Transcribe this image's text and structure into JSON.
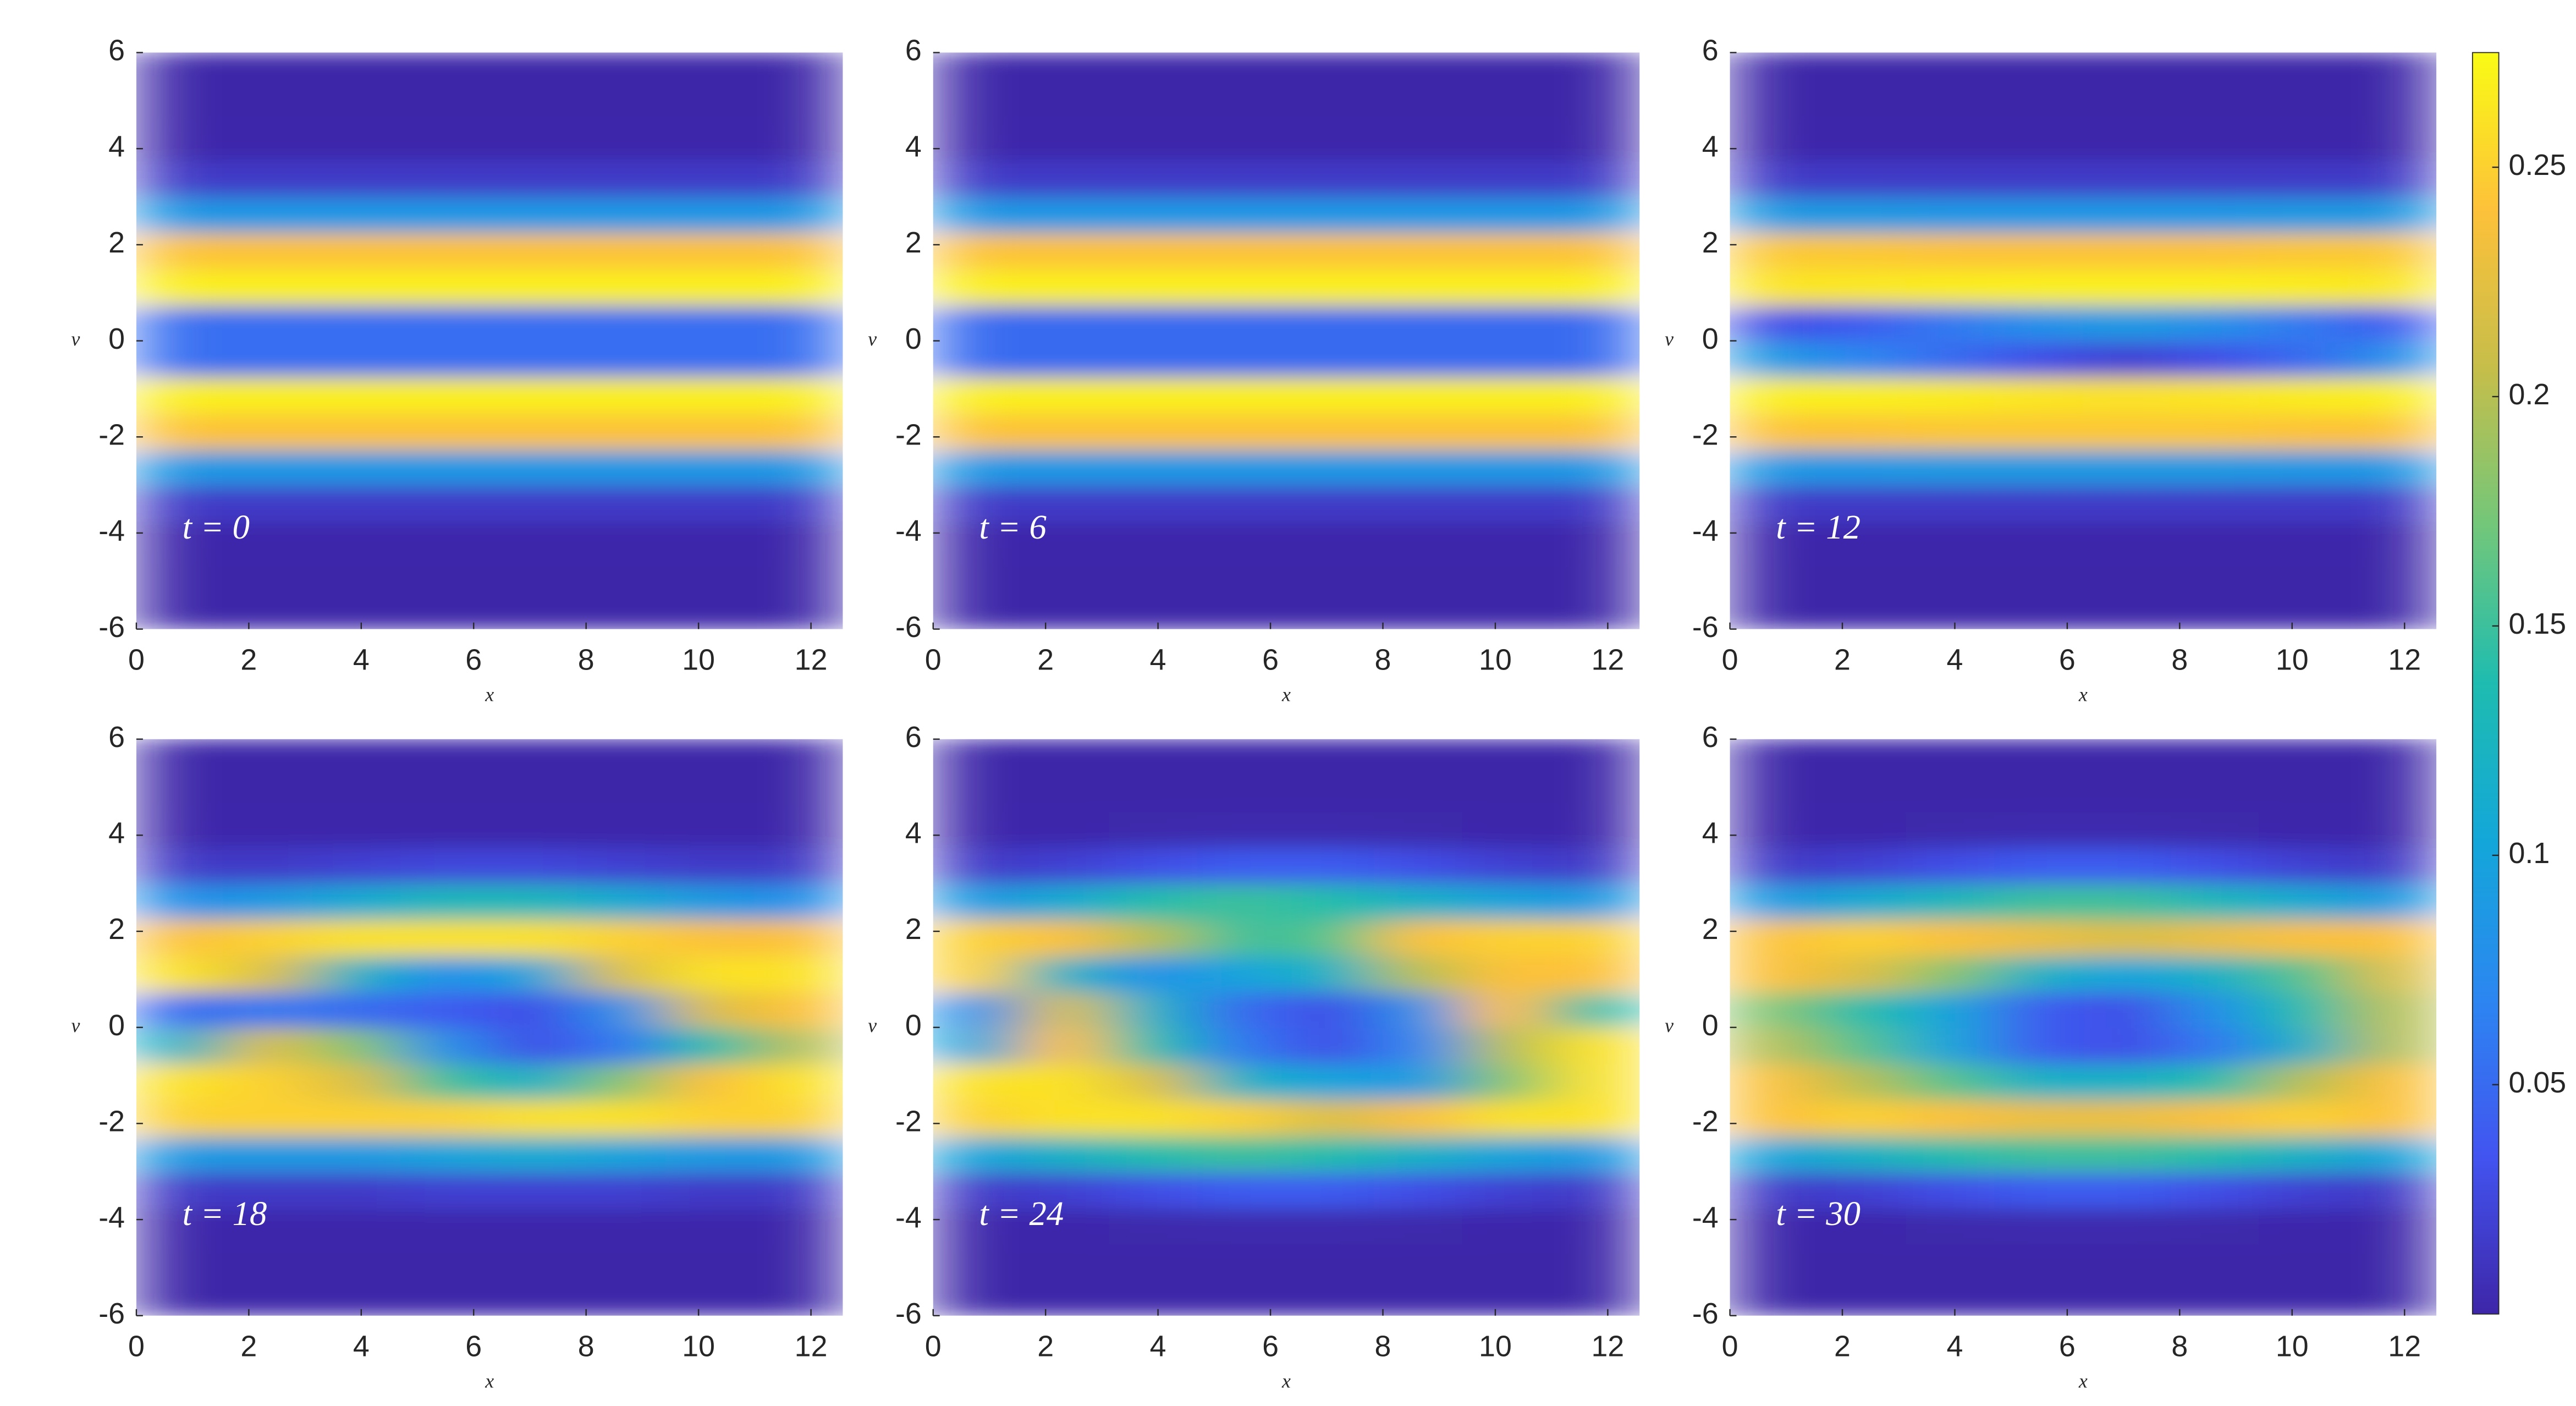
{
  "chart_data": [
    {
      "type": "heatmap",
      "label": "t = 0",
      "xlabel": "x",
      "ylabel": "v",
      "xlim": [
        0,
        12.566
      ],
      "ylim": [
        -6,
        6
      ],
      "xticks": [
        0,
        2,
        4,
        6,
        8,
        10,
        12
      ],
      "yticks": [
        -6,
        -4,
        -2,
        0,
        2,
        4,
        6
      ],
      "z": [
        [
          0
        ],
        [
          0
        ],
        [
          0.001
        ],
        [
          0.015
        ],
        [
          0.088
        ],
        [
          0.242
        ],
        [
          0.268
        ],
        [
          0.052
        ],
        [
          0.052
        ],
        [
          0.268
        ],
        [
          0.242
        ],
        [
          0.088
        ],
        [
          0.015
        ],
        [
          0.001
        ],
        [
          0
        ],
        [
          0
        ]
      ]
    },
    {
      "type": "heatmap",
      "label": "t = 6",
      "xlabel": "x",
      "ylabel": "v",
      "xlim": [
        0,
        12.566
      ],
      "ylim": [
        -6,
        6
      ],
      "xticks": [
        0,
        2,
        4,
        6,
        8,
        10,
        12
      ],
      "yticks": [
        -6,
        -4,
        -2,
        0,
        2,
        4,
        6
      ],
      "z": [
        [
          0
        ],
        [
          0
        ],
        [
          0.001
        ],
        [
          0.015
        ],
        [
          0.088
        ],
        [
          0.242
        ],
        [
          0.268
        ],
        [
          0.05
        ],
        [
          0.05
        ],
        [
          0.268
        ],
        [
          0.242
        ],
        [
          0.088
        ],
        [
          0.015
        ],
        [
          0.001
        ],
        [
          0
        ],
        [
          0
        ]
      ]
    },
    {
      "type": "heatmap",
      "label": "t = 12",
      "xlabel": "x",
      "ylabel": "v",
      "xlim": [
        0,
        12.566
      ],
      "ylim": [
        -6,
        6
      ],
      "xticks": [
        0,
        2,
        4,
        6,
        8,
        10,
        12
      ],
      "yticks": [
        -6,
        -4,
        -2,
        0,
        2,
        4,
        6
      ],
      "z": [
        [
          0,
          0,
          0,
          0,
          0,
          0,
          0,
          0
        ],
        [
          0,
          0,
          0,
          0,
          0,
          0,
          0,
          0
        ],
        [
          0.001,
          0.001,
          0.001,
          0.001,
          0.001,
          0.001,
          0.001,
          0.001
        ],
        [
          0.015,
          0.015,
          0.015,
          0.015,
          0.015,
          0.015,
          0.015,
          0.015
        ],
        [
          0.088,
          0.088,
          0.09,
          0.09,
          0.09,
          0.09,
          0.088,
          0.088
        ],
        [
          0.242,
          0.242,
          0.245,
          0.245,
          0.245,
          0.245,
          0.242,
          0.242
        ],
        [
          0.268,
          0.268,
          0.266,
          0.262,
          0.26,
          0.262,
          0.266,
          0.268
        ],
        [
          0.09,
          0.07,
          0.05,
          0.03,
          0.02,
          0.03,
          0.05,
          0.08
        ],
        [
          0.03,
          0.04,
          0.06,
          0.08,
          0.09,
          0.08,
          0.06,
          0.04
        ],
        [
          0.262,
          0.264,
          0.266,
          0.268,
          0.268,
          0.268,
          0.266,
          0.264
        ],
        [
          0.245,
          0.245,
          0.242,
          0.242,
          0.242,
          0.242,
          0.245,
          0.245
        ],
        [
          0.09,
          0.09,
          0.088,
          0.088,
          0.088,
          0.088,
          0.09,
          0.09
        ],
        [
          0.015,
          0.015,
          0.015,
          0.015,
          0.015,
          0.015,
          0.015,
          0.015
        ],
        [
          0.001,
          0.001,
          0.001,
          0.001,
          0.001,
          0.001,
          0.001,
          0.001
        ],
        [
          0,
          0,
          0,
          0,
          0,
          0,
          0,
          0
        ],
        [
          0,
          0,
          0,
          0,
          0,
          0,
          0,
          0
        ]
      ]
    },
    {
      "type": "heatmap",
      "label": "t = 18",
      "xlabel": "x",
      "ylabel": "v",
      "xlim": [
        0,
        12.566
      ],
      "ylim": [
        -6,
        6
      ],
      "xticks": [
        0,
        2,
        4,
        6,
        8,
        10,
        12
      ],
      "yticks": [
        -6,
        -4,
        -2,
        0,
        2,
        4,
        6
      ],
      "z": [
        [
          0,
          0,
          0,
          0,
          0,
          0,
          0,
          0
        ],
        [
          0,
          0,
          0,
          0,
          0,
          0,
          0,
          0
        ],
        [
          0.001,
          0.001,
          0.001,
          0.001,
          0.001,
          0.001,
          0.001,
          0.001
        ],
        [
          0.015,
          0.015,
          0.015,
          0.02,
          0.02,
          0.02,
          0.015,
          0.015
        ],
        [
          0.09,
          0.09,
          0.09,
          0.1,
          0.11,
          0.1,
          0.09,
          0.09
        ],
        [
          0.25,
          0.25,
          0.25,
          0.25,
          0.26,
          0.26,
          0.25,
          0.25
        ],
        [
          0.26,
          0.25,
          0.22,
          0.15,
          0.12,
          0.18,
          0.24,
          0.26
        ],
        [
          0.12,
          0.22,
          0.18,
          0.08,
          0.03,
          0.06,
          0.14,
          0.2
        ],
        [
          0.05,
          0.06,
          0.05,
          0.04,
          0.03,
          0.08,
          0.22,
          0.24
        ],
        [
          0.26,
          0.22,
          0.12,
          0.08,
          0.1,
          0.22,
          0.26,
          0.26
        ],
        [
          0.24,
          0.25,
          0.26,
          0.26,
          0.26,
          0.25,
          0.24,
          0.24
        ],
        [
          0.08,
          0.09,
          0.11,
          0.13,
          0.13,
          0.11,
          0.09,
          0.08
        ],
        [
          0.015,
          0.015,
          0.02,
          0.025,
          0.025,
          0.02,
          0.015,
          0.015
        ],
        [
          0.001,
          0.001,
          0.001,
          0.001,
          0.001,
          0.001,
          0.001,
          0.001
        ],
        [
          0,
          0,
          0,
          0,
          0,
          0,
          0,
          0
        ],
        [
          0,
          0,
          0,
          0,
          0,
          0,
          0,
          0
        ]
      ]
    },
    {
      "type": "heatmap",
      "label": "t = 24",
      "xlabel": "x",
      "ylabel": "v",
      "xlim": [
        0,
        12.566
      ],
      "ylim": [
        -6,
        6
      ],
      "xticks": [
        0,
        2,
        4,
        6,
        8,
        10,
        12
      ],
      "yticks": [
        -6,
        -4,
        -2,
        0,
        2,
        4,
        6
      ],
      "z": [
        [
          0,
          0,
          0,
          0,
          0,
          0,
          0,
          0
        ],
        [
          0,
          0,
          0,
          0,
          0,
          0,
          0,
          0
        ],
        [
          0.001,
          0.001,
          0.002,
          0.003,
          0.003,
          0.002,
          0.001,
          0.001
        ],
        [
          0.015,
          0.02,
          0.03,
          0.04,
          0.04,
          0.03,
          0.02,
          0.015
        ],
        [
          0.1,
          0.12,
          0.14,
          0.15,
          0.14,
          0.12,
          0.1,
          0.09
        ],
        [
          0.25,
          0.26,
          0.26,
          0.25,
          0.22,
          0.24,
          0.26,
          0.26
        ],
        [
          0.26,
          0.26,
          0.22,
          0.12,
          0.1,
          0.09,
          0.18,
          0.26
        ],
        [
          0.1,
          0.24,
          0.14,
          0.06,
          0.03,
          0.07,
          0.2,
          0.26
        ],
        [
          0.08,
          0.22,
          0.12,
          0.05,
          0.03,
          0.08,
          0.24,
          0.14
        ],
        [
          0.25,
          0.12,
          0.08,
          0.1,
          0.12,
          0.2,
          0.24,
          0.24
        ],
        [
          0.25,
          0.24,
          0.2,
          0.15,
          0.16,
          0.24,
          0.25,
          0.25
        ],
        [
          0.09,
          0.11,
          0.14,
          0.15,
          0.14,
          0.12,
          0.1,
          0.09
        ],
        [
          0.015,
          0.02,
          0.03,
          0.04,
          0.04,
          0.03,
          0.02,
          0.015
        ],
        [
          0.001,
          0.001,
          0.002,
          0.003,
          0.003,
          0.002,
          0.001,
          0.001
        ],
        [
          0,
          0,
          0,
          0,
          0,
          0,
          0,
          0
        ],
        [
          0,
          0,
          0,
          0,
          0,
          0,
          0,
          0
        ]
      ]
    },
    {
      "type": "heatmap",
      "label": "t = 30",
      "xlabel": "x",
      "ylabel": "v",
      "xlim": [
        0,
        12.566
      ],
      "ylim": [
        -6,
        6
      ],
      "xticks": [
        0,
        2,
        4,
        6,
        8,
        10,
        12
      ],
      "yticks": [
        -6,
        -4,
        -2,
        0,
        2,
        4,
        6
      ],
      "z": [
        [
          0,
          0,
          0,
          0,
          0,
          0,
          0,
          0
        ],
        [
          0,
          0,
          0,
          0,
          0,
          0,
          0,
          0
        ],
        [
          0.001,
          0.001,
          0.002,
          0.003,
          0.003,
          0.002,
          0.001,
          0.001
        ],
        [
          0.015,
          0.02,
          0.03,
          0.04,
          0.04,
          0.03,
          0.02,
          0.015
        ],
        [
          0.1,
          0.12,
          0.14,
          0.15,
          0.15,
          0.14,
          0.12,
          0.1
        ],
        [
          0.24,
          0.25,
          0.24,
          0.23,
          0.23,
          0.24,
          0.25,
          0.24
        ],
        [
          0.24,
          0.2,
          0.16,
          0.12,
          0.12,
          0.14,
          0.2,
          0.24
        ],
        [
          0.2,
          0.16,
          0.1,
          0.04,
          0.03,
          0.06,
          0.12,
          0.2
        ],
        [
          0.18,
          0.14,
          0.1,
          0.04,
          0.03,
          0.08,
          0.14,
          0.2
        ],
        [
          0.24,
          0.22,
          0.18,
          0.12,
          0.1,
          0.12,
          0.16,
          0.22
        ],
        [
          0.24,
          0.25,
          0.24,
          0.23,
          0.22,
          0.23,
          0.24,
          0.24
        ],
        [
          0.09,
          0.11,
          0.13,
          0.15,
          0.15,
          0.13,
          0.11,
          0.09
        ],
        [
          0.015,
          0.02,
          0.03,
          0.04,
          0.04,
          0.03,
          0.02,
          0.015
        ],
        [
          0.001,
          0.001,
          0.002,
          0.003,
          0.003,
          0.002,
          0.001,
          0.001
        ],
        [
          0,
          0,
          0,
          0,
          0,
          0,
          0,
          0
        ],
        [
          0,
          0,
          0,
          0,
          0,
          0,
          0,
          0
        ]
      ]
    },
    {
      "type": "colorbar",
      "clim": [
        0,
        0.275
      ],
      "ticks": [
        0.05,
        0.1,
        0.15,
        0.2,
        0.25
      ],
      "colormap": [
        "#3e26a8",
        "#4254f0",
        "#2c86f1",
        "#13a7d9",
        "#1ebcb0",
        "#72c77a",
        "#c6be4a",
        "#fdc13a",
        "#f9fb15"
      ]
    }
  ]
}
